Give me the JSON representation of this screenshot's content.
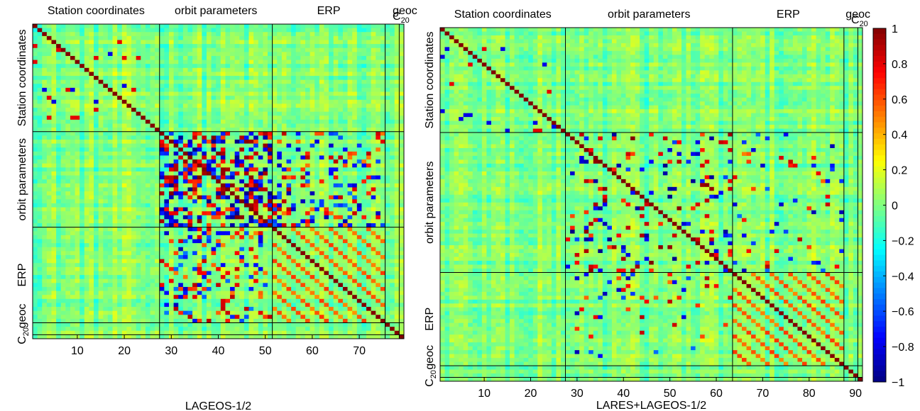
{
  "chart_data": [
    {
      "type": "heatmap",
      "xlabel": "LAGEOS-1/2",
      "size": 79,
      "x_ticks": [
        10,
        20,
        30,
        40,
        50,
        60,
        70
      ],
      "blocks": [
        {
          "name": "Station coordinates",
          "start": 1,
          "end": 27
        },
        {
          "name": "orbit parameters",
          "start": 28,
          "end": 51
        },
        {
          "name": "ERP",
          "start": 52,
          "end": 75
        },
        {
          "name": "geoc",
          "start": 76,
          "end": 78
        },
        {
          "name": "C20",
          "start": 79,
          "end": 79
        }
      ],
      "top_labels": [
        "Station coordinates",
        "orbit parameters",
        "ERP",
        "geoc"
      ],
      "left_labels": [
        "Station coordinates",
        "orbit parameters",
        "ERP",
        "geoc"
      ],
      "c20_label": {
        "base": "C",
        "sub": "20"
      },
      "value_range": [
        -1,
        1
      ],
      "diagonal": 1
    },
    {
      "type": "heatmap",
      "xlabel": "LARES+LAGEOS-1/2",
      "size": 91,
      "x_ticks": [
        10,
        20,
        30,
        40,
        50,
        60,
        70,
        80,
        90
      ],
      "blocks": [
        {
          "name": "Station coordinates",
          "start": 1,
          "end": 27
        },
        {
          "name": "orbit parameters",
          "start": 28,
          "end": 63
        },
        {
          "name": "ERP",
          "start": 64,
          "end": 87
        },
        {
          "name": "geoc",
          "start": 88,
          "end": 90
        },
        {
          "name": "C20",
          "start": 91,
          "end": 91
        }
      ],
      "top_labels": [
        "Station coordinates",
        "orbit parameters",
        "ERP",
        "geoc"
      ],
      "left_labels": [
        "Station coordinates",
        "orbit parameters",
        "ERP",
        "geoc"
      ],
      "c20_label": {
        "base": "C",
        "sub": "20"
      },
      "value_range": [
        -1,
        1
      ],
      "diagonal": 1
    }
  ],
  "colorbar": {
    "min": -1,
    "max": 1,
    "ticks": [
      "1",
      "0.8",
      "0.6",
      "0.4",
      "0.2",
      "0",
      "−0.2",
      "−0.4",
      "−0.6",
      "−0.8",
      "−1"
    ],
    "colormap": "jet"
  }
}
